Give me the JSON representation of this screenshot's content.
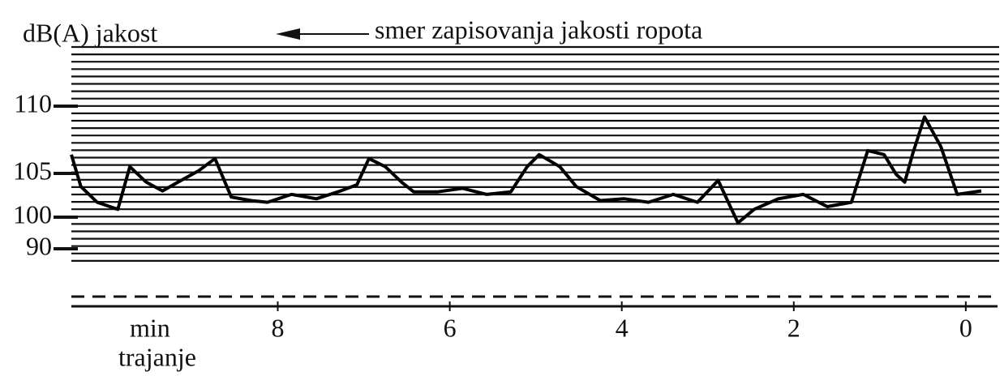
{
  "chart_data": {
    "type": "line",
    "title": "smer zapisovanja jakosti ropota",
    "y_label": "dB(A) jakost",
    "x_label": "min",
    "x_label_2": "trajanje",
    "xlim": [
      10.4,
      -0.35
    ],
    "xticks": [
      8,
      6,
      4,
      2,
      0
    ],
    "ylim": [
      90,
      110
    ],
    "yticks": [
      90,
      100,
      105,
      110
    ],
    "color": "#000000",
    "x": [
      10.4,
      10.29,
      10.1,
      9.86,
      9.72,
      9.53,
      9.34,
      9.16,
      8.92,
      8.73,
      8.54,
      8.31,
      8.12,
      7.84,
      7.55,
      7.27,
      7.08,
      6.94,
      6.75,
      6.56,
      6.42,
      6.14,
      5.85,
      5.57,
      5.29,
      5.1,
      4.96,
      4.72,
      4.53,
      4.25,
      3.97,
      3.69,
      3.4,
      3.12,
      2.88,
      2.65,
      2.46,
      2.18,
      1.89,
      1.61,
      1.33,
      1.14,
      0.95,
      0.81,
      0.71,
      0.62,
      0.48,
      0.29,
      0.1,
      -0.18
    ],
    "values": [
      106.4,
      103.5,
      101.7,
      100.9,
      105.5,
      104,
      103,
      104,
      105.2,
      106.1,
      102.3,
      101.9,
      101.7,
      102.6,
      102.1,
      103,
      103.7,
      106.1,
      105.5,
      104,
      102.9,
      102.9,
      103.3,
      102.6,
      102.9,
      105.5,
      106.4,
      105.5,
      103.5,
      101.9,
      102.1,
      101.7,
      102.6,
      101.7,
      104.2,
      98.2,
      100.9,
      102.1,
      102.6,
      101.2,
      101.7,
      106.7,
      106.4,
      104.9,
      104,
      106.4,
      109.2,
      107,
      102.6,
      103
    ]
  }
}
